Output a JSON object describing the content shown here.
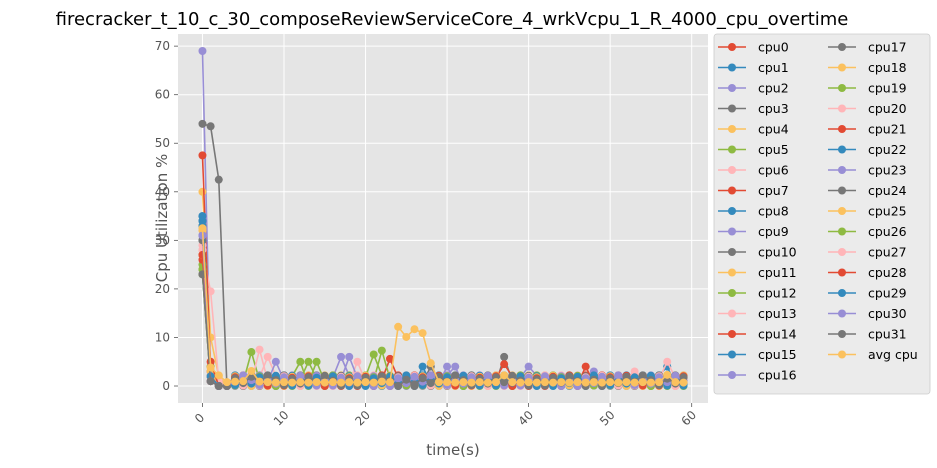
{
  "chart_data": {
    "type": "line",
    "title": "firecracker_t_10_c_30_composeReviewServiceCore_4_wrkVcpu_1_R_4000_cpu_overtime",
    "xlabel": "time(s)",
    "ylabel": "Cpu Utilization %",
    "xlim": [
      -3,
      62
    ],
    "ylim": [
      -3.5,
      72.5
    ],
    "xticks": [
      0,
      10,
      20,
      30,
      40,
      50,
      60
    ],
    "yticks": [
      0,
      10,
      20,
      30,
      40,
      50,
      60,
      70
    ],
    "grid": true,
    "legend_placement": "outside-right",
    "legend_columns": 2,
    "x": [
      0,
      1,
      2,
      3,
      4,
      5,
      6,
      7,
      8,
      9,
      10,
      11,
      12,
      13,
      14,
      15,
      16,
      17,
      18,
      19,
      20,
      21,
      22,
      23,
      24,
      25,
      26,
      27,
      28,
      29,
      30,
      31,
      32,
      33,
      34,
      35,
      36,
      37,
      38,
      39,
      40,
      41,
      42,
      43,
      44,
      45,
      46,
      47,
      48,
      49,
      50,
      51,
      52,
      53,
      54,
      55,
      56,
      57,
      58,
      59
    ],
    "series": [
      {
        "name": "cpu0",
        "color": "#E24A33",
        "start": [
          27,
          4,
          0,
          0
        ]
      },
      {
        "name": "cpu1",
        "color": "#348ABD",
        "start": [
          35,
          2,
          0,
          0
        ]
      },
      {
        "name": "cpu2",
        "color": "#988ED5",
        "start": [
          69,
          1,
          0,
          0
        ]
      },
      {
        "name": "cpu3",
        "color": "#777777",
        "start": [
          54,
          53.5,
          42.5,
          0
        ]
      },
      {
        "name": "cpu4",
        "color": "#FBC15E",
        "start": [
          40,
          10,
          2,
          0
        ]
      },
      {
        "name": "cpu5",
        "color": "#8EBA42",
        "start": [
          24,
          4,
          1,
          0
        ]
      },
      {
        "name": "cpu6",
        "color": "#FFB5B8",
        "start": [
          28,
          19.5,
          1,
          0
        ]
      },
      {
        "name": "cpu7",
        "color": "#E24A33",
        "start": [
          47.5,
          3,
          0,
          0
        ]
      },
      {
        "name": "cpu8",
        "color": "#348ABD",
        "start": [
          34,
          2,
          0,
          0
        ]
      },
      {
        "name": "cpu9",
        "color": "#988ED5",
        "start": [
          31,
          1,
          0,
          0
        ]
      },
      {
        "name": "cpu10",
        "color": "#777777",
        "start": [
          30,
          2,
          0,
          0
        ]
      },
      {
        "name": "cpu11",
        "color": "#FBC15E",
        "start": [
          33,
          3,
          0,
          0
        ]
      },
      {
        "name": "cpu12",
        "color": "#8EBA42",
        "start": [
          25,
          2,
          0,
          0
        ]
      },
      {
        "name": "cpu13",
        "color": "#FFB5B8",
        "start": [
          29,
          2,
          0,
          0
        ]
      },
      {
        "name": "cpu14",
        "color": "#E24A33",
        "start": [
          26,
          1,
          0,
          0
        ]
      },
      {
        "name": "cpu15",
        "color": "#348ABD",
        "start": [
          33,
          2,
          0,
          0
        ]
      },
      {
        "name": "cpu16",
        "color": "#988ED5",
        "start": [
          31,
          1,
          0,
          0
        ]
      },
      {
        "name": "cpu17",
        "color": "#777777",
        "start": [
          23,
          1,
          0,
          0
        ]
      },
      {
        "name": "cpu18",
        "color": "#FBC15E",
        "start": [
          32,
          2,
          0,
          0
        ]
      },
      {
        "name": "cpu19",
        "color": "#8EBA42",
        "start": [
          23,
          1,
          0,
          0
        ]
      },
      {
        "name": "cpu20",
        "color": "#FFB5B8",
        "start": [
          28,
          2,
          0,
          0
        ]
      },
      {
        "name": "cpu21",
        "color": "#E24A33",
        "start": [
          27,
          5,
          0,
          0
        ]
      },
      {
        "name": "cpu22",
        "color": "#348ABD",
        "start": [
          34,
          2,
          0,
          0
        ]
      },
      {
        "name": "cpu23",
        "color": "#988ED5",
        "start": [
          31,
          1,
          0,
          0
        ]
      },
      {
        "name": "cpu24",
        "color": "#777777",
        "start": [
          30,
          2,
          0,
          0
        ]
      },
      {
        "name": "cpu25",
        "color": "#FBC15E",
        "start": [
          27,
          2,
          0,
          0
        ]
      },
      {
        "name": "cpu26",
        "color": "#8EBA42",
        "start": [
          24,
          1,
          0,
          0
        ]
      },
      {
        "name": "cpu27",
        "color": "#FFB5B8",
        "start": [
          28,
          2,
          0,
          0
        ]
      },
      {
        "name": "cpu28",
        "color": "#E24A33",
        "start": [
          27,
          1,
          0,
          0
        ]
      },
      {
        "name": "cpu29",
        "color": "#348ABD",
        "start": [
          35,
          2,
          0,
          0
        ]
      },
      {
        "name": "cpu30",
        "color": "#988ED5",
        "start": [
          31,
          1,
          0,
          0
        ]
      },
      {
        "name": "cpu31",
        "color": "#777777",
        "start": [
          23,
          1,
          0,
          0
        ]
      },
      {
        "name": "avg cpu",
        "color": "#FBC15E",
        "values": [
          32.5,
          3.8,
          2.2,
          0.8,
          0.9,
          1.0,
          3.1,
          0.9,
          0.8,
          0.7,
          0.8,
          0.7,
          0.8,
          0.7,
          0.8,
          0.7,
          0.8,
          0.7,
          0.8,
          0.7,
          0.8,
          0.7,
          0.9,
          0.8,
          12.2,
          10.1,
          11.7,
          10.9,
          4.7,
          0.8,
          0.8,
          0.7,
          0.8,
          0.7,
          0.8,
          0.7,
          0.8,
          2.2,
          0.8,
          0.7,
          0.8,
          0.7,
          0.8,
          0.7,
          0.8,
          0.7,
          0.8,
          0.7,
          0.8,
          0.7,
          0.8,
          0.7,
          0.8,
          0.7,
          0.8,
          0.7,
          0.8,
          2.3,
          0.8,
          0.7
        ]
      }
    ],
    "steady_spikes": [
      {
        "series": "cpu5",
        "x": 6,
        "y": 7
      },
      {
        "series": "cpu13",
        "x": 7,
        "y": 7.5
      },
      {
        "series": "cpu6",
        "x": 8,
        "y": 6
      },
      {
        "series": "cpu16",
        "x": 9,
        "y": 5
      },
      {
        "series": "cpu12",
        "x": 12,
        "y": 5
      },
      {
        "series": "cpu19",
        "x": 13,
        "y": 5
      },
      {
        "series": "cpu26",
        "x": 14,
        "y": 5
      },
      {
        "series": "cpu9",
        "x": 17,
        "y": 6
      },
      {
        "series": "cpu23",
        "x": 18,
        "y": 6
      },
      {
        "series": "cpu20",
        "x": 19,
        "y": 5
      },
      {
        "series": "cpu5",
        "x": 21,
        "y": 6.5
      },
      {
        "series": "cpu12",
        "x": 22,
        "y": 7.3
      },
      {
        "series": "cpu7",
        "x": 23,
        "y": 5.6
      },
      {
        "series": "cpu8",
        "x": 27,
        "y": 4
      },
      {
        "series": "cpu10",
        "x": 28,
        "y": 4
      },
      {
        "series": "cpu16",
        "x": 30,
        "y": 4
      },
      {
        "series": "cpu23",
        "x": 31,
        "y": 4
      },
      {
        "series": "cpu3",
        "x": 37,
        "y": 6
      },
      {
        "series": "cpu21",
        "x": 37,
        "y": 4.5
      },
      {
        "series": "cpu9",
        "x": 40,
        "y": 4
      },
      {
        "series": "cpu7",
        "x": 47,
        "y": 4
      },
      {
        "series": "cpu16",
        "x": 48,
        "y": 3
      },
      {
        "series": "cpu27",
        "x": 53,
        "y": 3
      },
      {
        "series": "cpu13",
        "x": 57,
        "y": 5
      },
      {
        "series": "cpu1",
        "x": 57,
        "y": 4
      }
    ]
  }
}
